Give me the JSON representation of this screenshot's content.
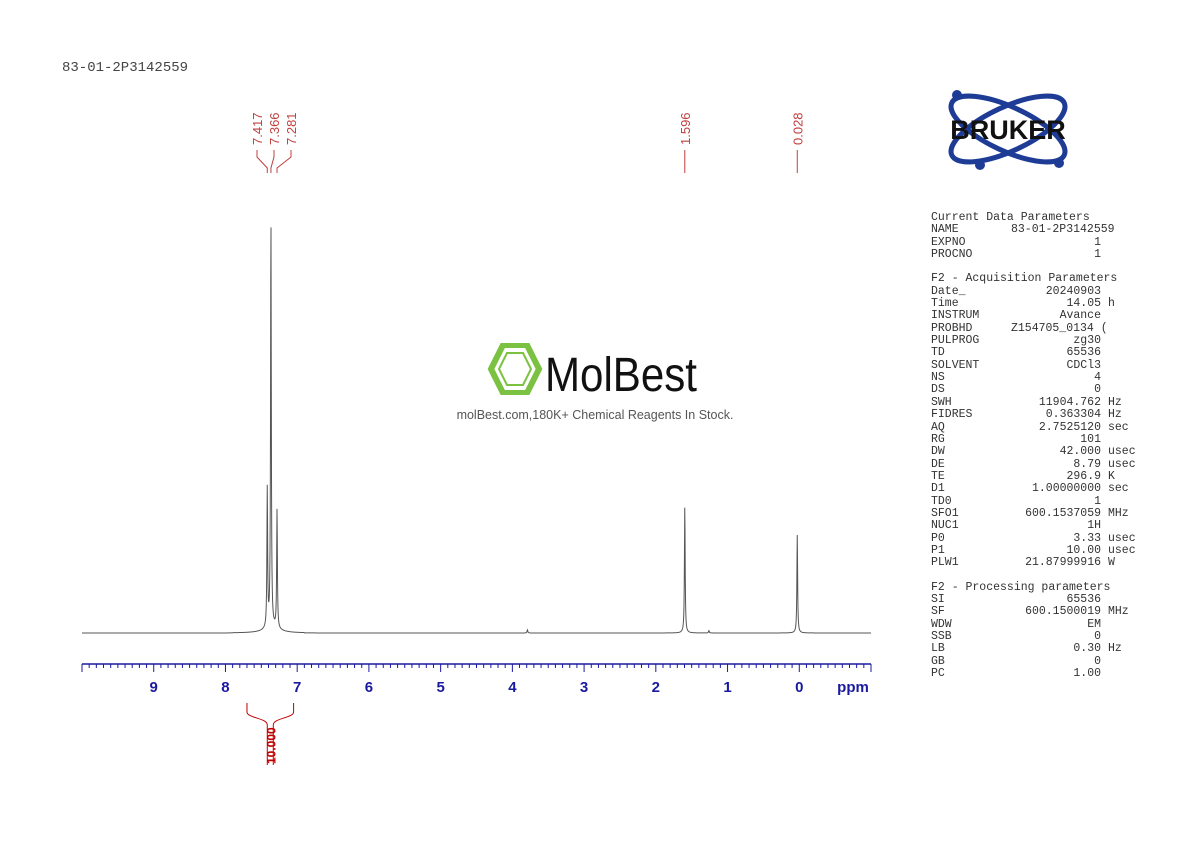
{
  "sample_id": "83-01-2P3142559",
  "logo": {
    "brand": "BRUKER",
    "watermark_brand": "MolBest",
    "watermark_text": "molBest.com,180K+ Chemical Reagents In Stock."
  },
  "colors": {
    "spectrum": "#555555",
    "axis": "#1a1aa0",
    "peak_labels": "#c04040",
    "integral": "#c00000"
  },
  "parameters": [
    {
      "title": "Current Data Parameters",
      "rows": [
        [
          "NAME",
          "83-01-2P3142559",
          ""
        ],
        [
          "EXPNO",
          "1",
          ""
        ],
        [
          "PROCNO",
          "1",
          ""
        ]
      ]
    },
    {
      "title": "F2 - Acquisition Parameters",
      "rows": [
        [
          "Date_",
          "20240903",
          ""
        ],
        [
          "Time",
          "14.05",
          "h"
        ],
        [
          "INSTRUM",
          "Avance",
          ""
        ],
        [
          "PROBHD",
          "Z154705_0134 (",
          ""
        ],
        [
          "PULPROG",
          "zg30",
          ""
        ],
        [
          "TD",
          "65536",
          ""
        ],
        [
          "SOLVENT",
          "CDCl3",
          ""
        ],
        [
          "NS",
          "4",
          ""
        ],
        [
          "DS",
          "0",
          ""
        ],
        [
          "SWH",
          "11904.762",
          "Hz"
        ],
        [
          "FIDRES",
          "0.363304",
          "Hz"
        ],
        [
          "AQ",
          "2.7525120",
          "sec"
        ],
        [
          "RG",
          "101",
          ""
        ],
        [
          "DW",
          "42.000",
          "usec"
        ],
        [
          "DE",
          "8.79",
          "usec"
        ],
        [
          "TE",
          "296.9",
          "K"
        ],
        [
          "D1",
          "1.00000000",
          "sec"
        ],
        [
          "TD0",
          "1",
          ""
        ],
        [
          "SFO1",
          "600.1537059",
          "MHz"
        ],
        [
          "NUC1",
          "1H",
          ""
        ],
        [
          "P0",
          "3.33",
          "usec"
        ],
        [
          "P1",
          "10.00",
          "usec"
        ],
        [
          "PLW1",
          "21.87999916",
          "W"
        ]
      ]
    },
    {
      "title": "F2 - Processing parameters",
      "rows": [
        [
          "SI",
          "65536",
          ""
        ],
        [
          "SF",
          "600.1500019",
          "MHz"
        ],
        [
          "WDW",
          "EM",
          ""
        ],
        [
          "SSB",
          "0",
          ""
        ],
        [
          "LB",
          "0.30",
          "Hz"
        ],
        [
          "GB",
          "0",
          ""
        ],
        [
          "PC",
          "1.00",
          ""
        ]
      ]
    }
  ],
  "chart_data": {
    "type": "line",
    "xlabel": "ppm",
    "xlim": [
      10,
      -1
    ],
    "xticks": [
      9,
      8,
      7,
      6,
      5,
      4,
      3,
      2,
      1,
      0
    ],
    "reversed_x": true,
    "grid": false,
    "peaks": [
      {
        "ppm": 7.417,
        "label": "7.417",
        "intensity": 0.34
      },
      {
        "ppm": 7.366,
        "label": "7.366",
        "intensity": 1.0
      },
      {
        "ppm": 7.281,
        "label": "7.281",
        "intensity": 0.29
      },
      {
        "ppm": 1.596,
        "label": "1.596",
        "intensity": 0.31
      },
      {
        "ppm": 0.028,
        "label": "0.028",
        "intensity": 0.24
      }
    ],
    "minor_peaks": [
      {
        "ppm": 3.79,
        "intensity": 0.008
      },
      {
        "ppm": 1.26,
        "intensity": 0.006
      }
    ],
    "integrals": [
      {
        "from": 7.7,
        "to": 7.05,
        "value": "10.000"
      }
    ]
  }
}
